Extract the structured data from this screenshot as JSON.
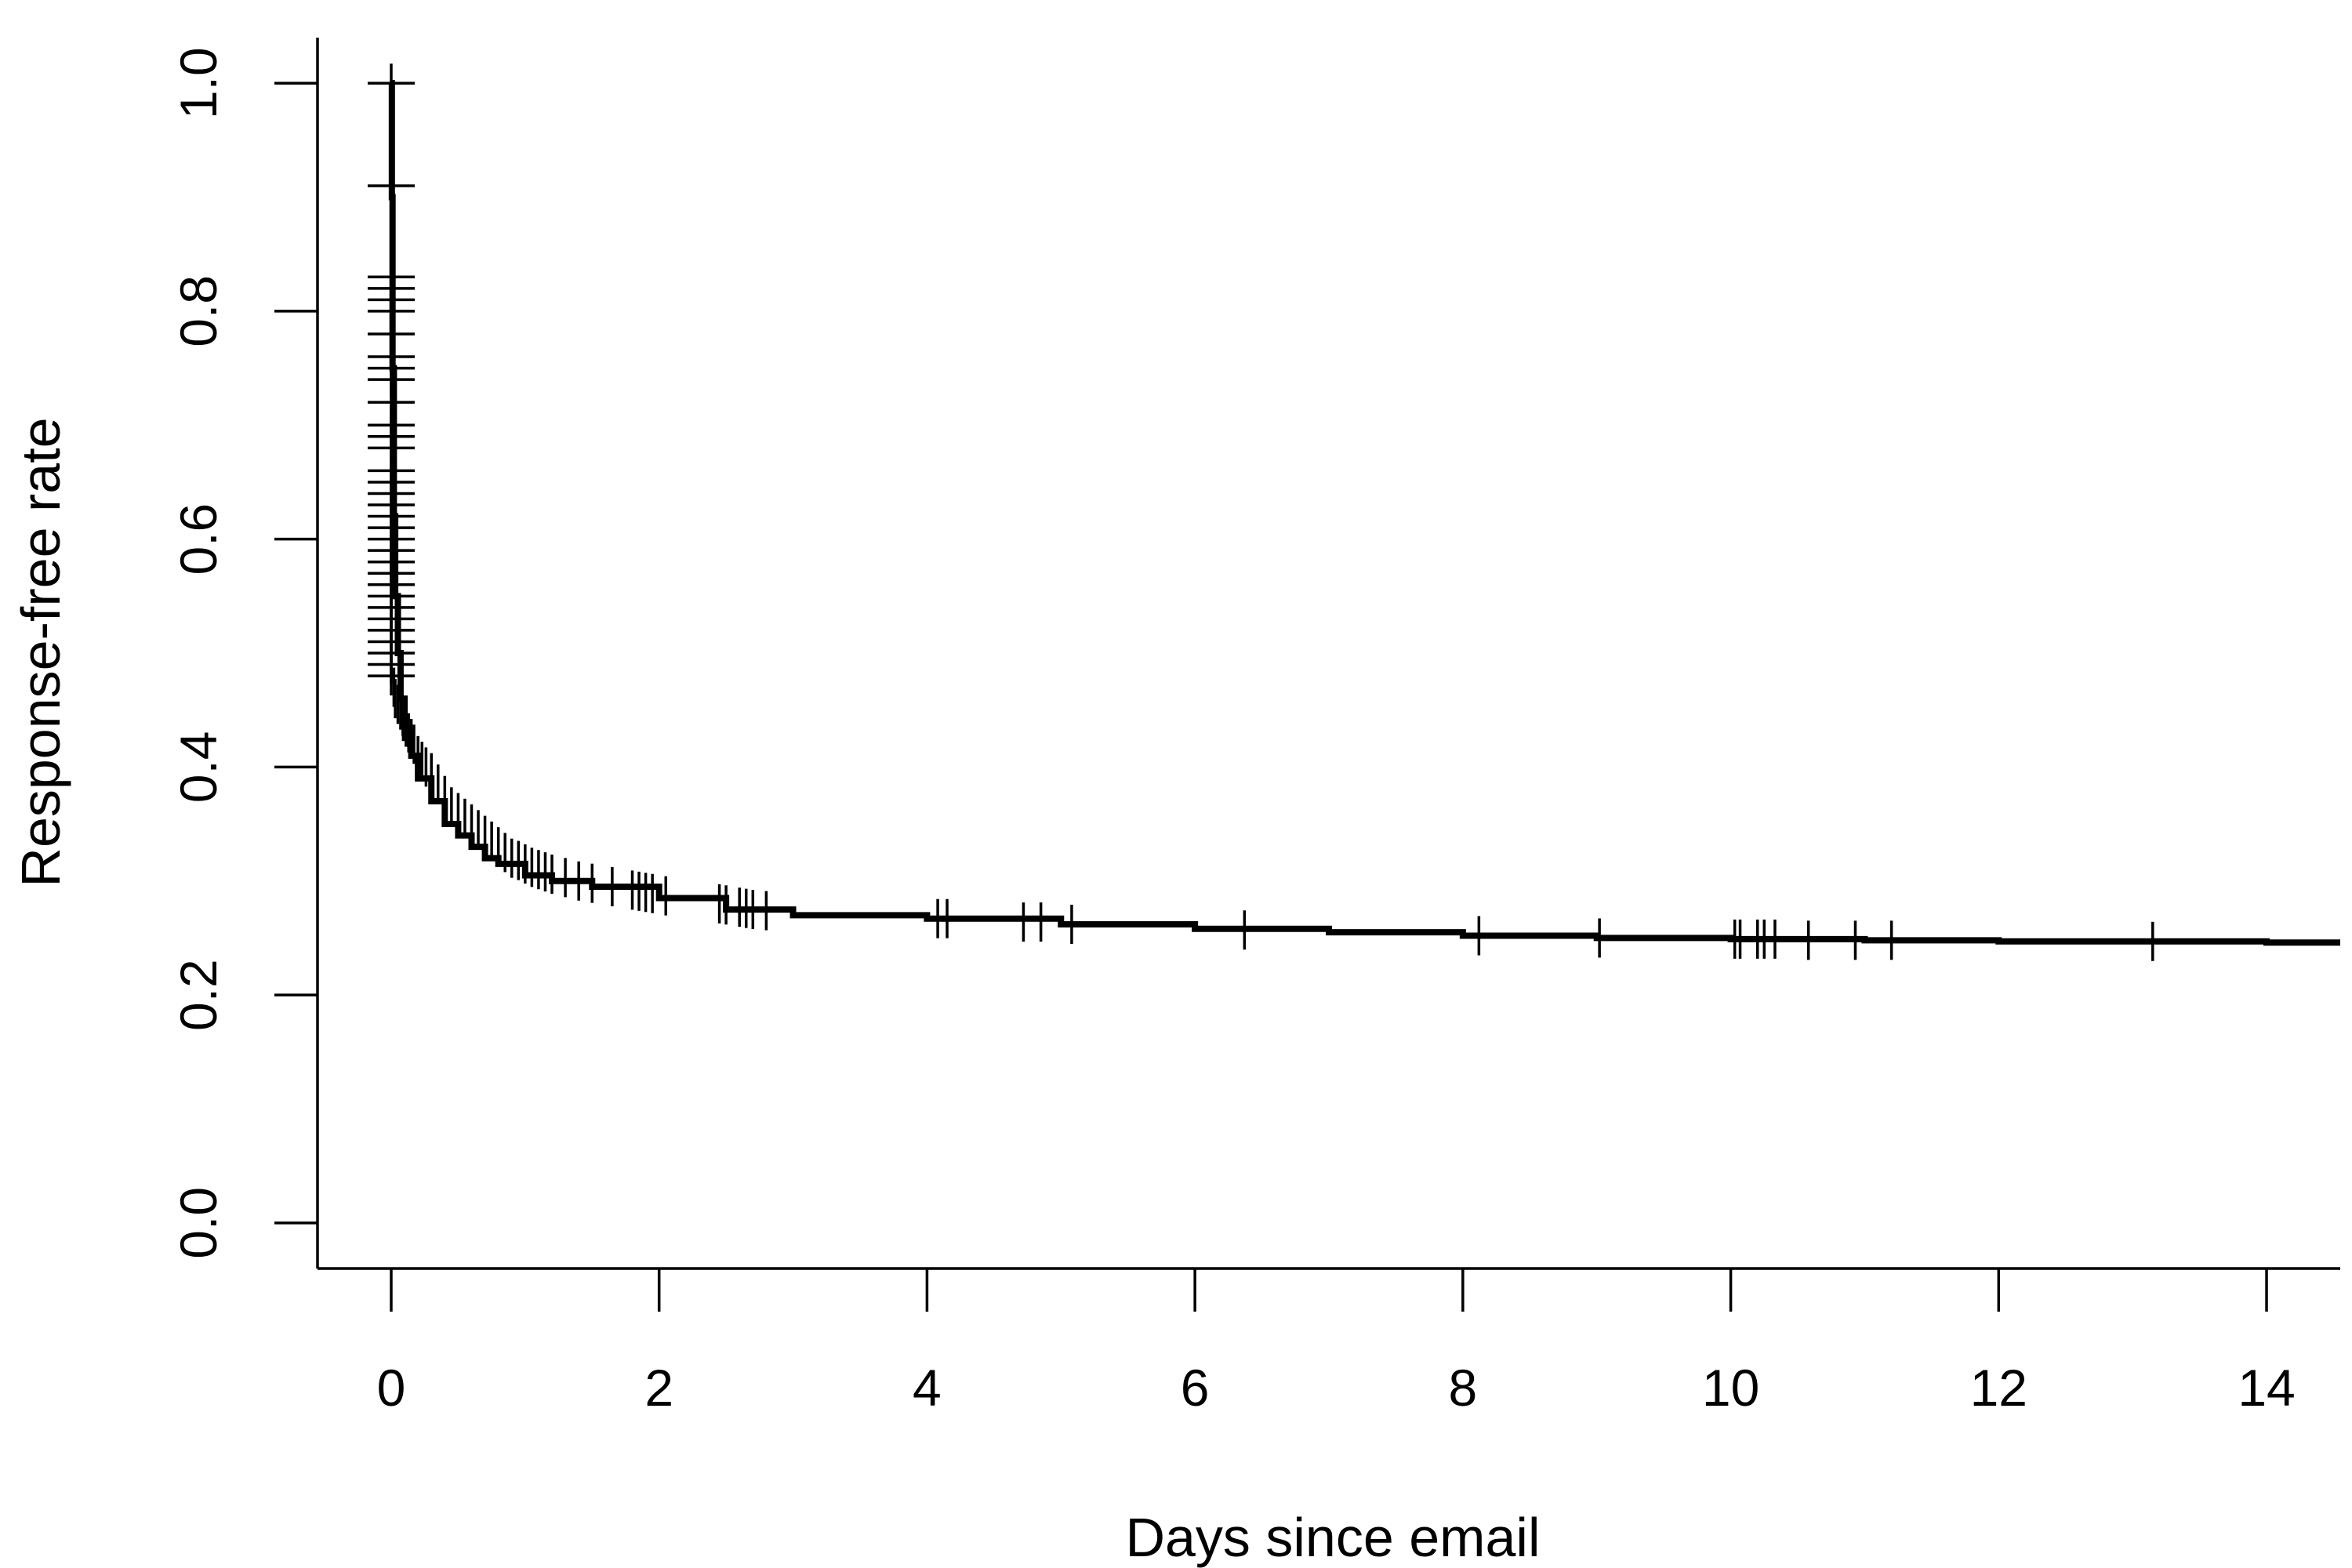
{
  "chart_data": {
    "type": "line",
    "title": "",
    "xlabel": "Days since email",
    "ylabel": "Response-free rate",
    "xlim": [
      -0.55,
      14.55
    ],
    "ylim": [
      -0.04,
      1.04
    ],
    "x_ticks": [
      0,
      2,
      4,
      6,
      8,
      10,
      12,
      14
    ],
    "y_ticks": [
      0.0,
      0.2,
      0.4,
      0.6,
      0.8,
      1.0
    ],
    "x_tick_labels": [
      "0",
      "2",
      "4",
      "6",
      "8",
      "10",
      "12",
      "14"
    ],
    "y_tick_labels": [
      "0.0",
      "0.2",
      "0.4",
      "0.6",
      "0.8",
      "1.0"
    ],
    "grid": false,
    "legend": "none",
    "series": [
      {
        "x": [
          0,
          0.005,
          0.01,
          0.02,
          0.03,
          0.05,
          0.07,
          0.1,
          0.15,
          0.2,
          0.3,
          0.4,
          0.5,
          0.6,
          0.7,
          0.8,
          1.0,
          1.2,
          1.5,
          2.0,
          2.5,
          3.0,
          4.0,
          5.0,
          6.0,
          7.0,
          8.0,
          9.0,
          10.0,
          11.0,
          12.0,
          13.0,
          14.0,
          14.55
        ],
        "values": [
          1.0,
          0.9,
          0.75,
          0.62,
          0.55,
          0.5,
          0.46,
          0.43,
          0.41,
          0.39,
          0.37,
          0.35,
          0.34,
          0.33,
          0.32,
          0.315,
          0.305,
          0.3,
          0.295,
          0.285,
          0.275,
          0.27,
          0.267,
          0.262,
          0.258,
          0.255,
          0.252,
          0.25,
          0.249,
          0.248,
          0.247,
          0.247,
          0.246,
          0.246
        ]
      }
    ],
    "censor_marks": [
      {
        "x": 0.0,
        "y": 1.0
      },
      {
        "x": 0.0,
        "y": 0.91
      },
      {
        "x": 0.0,
        "y": 0.83
      },
      {
        "x": 0.0,
        "y": 0.82
      },
      {
        "x": 0.0,
        "y": 0.81
      },
      {
        "x": 0.0,
        "y": 0.8
      },
      {
        "x": 0.0,
        "y": 0.78
      },
      {
        "x": 0.0,
        "y": 0.76
      },
      {
        "x": 0.0,
        "y": 0.75
      },
      {
        "x": 0.0,
        "y": 0.74
      },
      {
        "x": 0.0,
        "y": 0.72
      },
      {
        "x": 0.0,
        "y": 0.7
      },
      {
        "x": 0.0,
        "y": 0.69
      },
      {
        "x": 0.0,
        "y": 0.68
      },
      {
        "x": 0.0,
        "y": 0.66
      },
      {
        "x": 0.0,
        "y": 0.65
      },
      {
        "x": 0.0,
        "y": 0.64
      },
      {
        "x": 0.0,
        "y": 0.63
      },
      {
        "x": 0.0,
        "y": 0.62
      },
      {
        "x": 0.0,
        "y": 0.61
      },
      {
        "x": 0.0,
        "y": 0.6
      },
      {
        "x": 0.0,
        "y": 0.59
      },
      {
        "x": 0.0,
        "y": 0.58
      },
      {
        "x": 0.0,
        "y": 0.57
      },
      {
        "x": 0.0,
        "y": 0.56
      },
      {
        "x": 0.0,
        "y": 0.55
      },
      {
        "x": 0.0,
        "y": 0.54
      },
      {
        "x": 0.0,
        "y": 0.53
      },
      {
        "x": 0.0,
        "y": 0.52
      },
      {
        "x": 0.0,
        "y": 0.51
      },
      {
        "x": 0.0,
        "y": 0.5
      },
      {
        "x": 0.0,
        "y": 0.49
      },
      {
        "x": 0.0,
        "y": 0.48
      },
      {
        "x": 0.02,
        "y": 0.47
      },
      {
        "x": 0.03,
        "y": 0.46
      },
      {
        "x": 0.05,
        "y": 0.455
      },
      {
        "x": 0.07,
        "y": 0.45
      },
      {
        "x": 0.09,
        "y": 0.44
      },
      {
        "x": 0.11,
        "y": 0.435
      },
      {
        "x": 0.13,
        "y": 0.43
      },
      {
        "x": 0.15,
        "y": 0.425
      },
      {
        "x": 0.17,
        "y": 0.42
      },
      {
        "x": 0.2,
        "y": 0.41
      },
      {
        "x": 0.23,
        "y": 0.405
      },
      {
        "x": 0.26,
        "y": 0.4
      },
      {
        "x": 0.3,
        "y": 0.395
      },
      {
        "x": 0.35,
        "y": 0.385
      },
      {
        "x": 0.4,
        "y": 0.375
      },
      {
        "x": 0.45,
        "y": 0.365
      },
      {
        "x": 0.5,
        "y": 0.36
      },
      {
        "x": 0.55,
        "y": 0.355
      },
      {
        "x": 0.6,
        "y": 0.35
      },
      {
        "x": 0.65,
        "y": 0.345
      },
      {
        "x": 0.7,
        "y": 0.34
      },
      {
        "x": 0.75,
        "y": 0.335
      },
      {
        "x": 0.8,
        "y": 0.33
      },
      {
        "x": 0.85,
        "y": 0.325
      },
      {
        "x": 0.9,
        "y": 0.32
      },
      {
        "x": 0.95,
        "y": 0.318
      },
      {
        "x": 1.0,
        "y": 0.315
      },
      {
        "x": 1.05,
        "y": 0.312
      },
      {
        "x": 1.1,
        "y": 0.31
      },
      {
        "x": 1.15,
        "y": 0.308
      },
      {
        "x": 1.2,
        "y": 0.306
      },
      {
        "x": 1.3,
        "y": 0.303
      },
      {
        "x": 1.4,
        "y": 0.3
      },
      {
        "x": 1.5,
        "y": 0.298
      },
      {
        "x": 1.65,
        "y": 0.295
      },
      {
        "x": 1.8,
        "y": 0.292
      },
      {
        "x": 1.85,
        "y": 0.291
      },
      {
        "x": 1.9,
        "y": 0.29
      },
      {
        "x": 1.95,
        "y": 0.289
      },
      {
        "x": 2.05,
        "y": 0.287
      },
      {
        "x": 2.45,
        "y": 0.28
      },
      {
        "x": 2.5,
        "y": 0.279
      },
      {
        "x": 2.6,
        "y": 0.277
      },
      {
        "x": 2.65,
        "y": 0.276
      },
      {
        "x": 2.7,
        "y": 0.275
      },
      {
        "x": 2.8,
        "y": 0.274
      },
      {
        "x": 4.08,
        "y": 0.267
      },
      {
        "x": 4.15,
        "y": 0.267
      },
      {
        "x": 4.72,
        "y": 0.264
      },
      {
        "x": 4.85,
        "y": 0.264
      },
      {
        "x": 5.08,
        "y": 0.262
      },
      {
        "x": 6.37,
        "y": 0.257
      },
      {
        "x": 8.12,
        "y": 0.252
      },
      {
        "x": 9.02,
        "y": 0.25
      },
      {
        "x": 10.03,
        "y": 0.249
      },
      {
        "x": 10.07,
        "y": 0.249
      },
      {
        "x": 10.2,
        "y": 0.249
      },
      {
        "x": 10.25,
        "y": 0.249
      },
      {
        "x": 10.33,
        "y": 0.249
      },
      {
        "x": 10.58,
        "y": 0.248
      },
      {
        "x": 10.93,
        "y": 0.248
      },
      {
        "x": 11.2,
        "y": 0.248
      },
      {
        "x": 13.15,
        "y": 0.247
      }
    ]
  }
}
